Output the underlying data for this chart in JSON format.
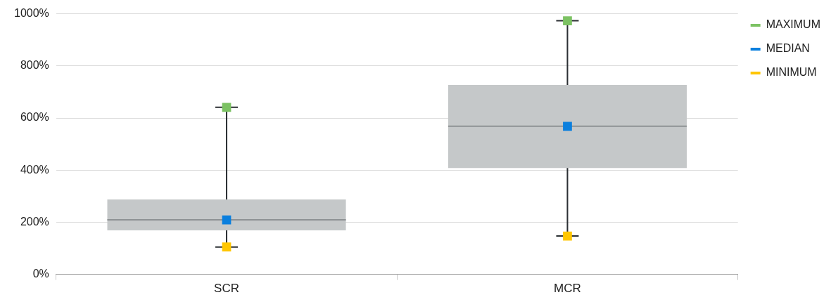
{
  "chart_data": {
    "type": "box",
    "categories": [
      "SCR",
      "MCR"
    ],
    "ylim": [
      0,
      1000
    ],
    "yticks": [
      {
        "value": 0,
        "label": "0%"
      },
      {
        "value": 200,
        "label": "200%"
      },
      {
        "value": 400,
        "label": "400%"
      },
      {
        "value": 600,
        "label": "600%"
      },
      {
        "value": 800,
        "label": "800%"
      },
      {
        "value": 1000,
        "label": "1000%"
      }
    ],
    "grid": "y",
    "legend": "top right",
    "series": [
      {
        "type": "box",
        "color": "#c5c8c9",
        "boxes": [
          {
            "low": 105,
            "q1": 169,
            "median": 209,
            "q3": 287,
            "high": 641
          },
          {
            "low": 147,
            "q1": 408,
            "median": 568,
            "q3": 727,
            "high": 973
          }
        ]
      },
      {
        "name": "MAXIMUM",
        "type": "scatter",
        "marker": "square",
        "color": "#7cc263",
        "x": [
          "SCR",
          "MCR"
        ],
        "values": [
          641,
          973
        ]
      },
      {
        "name": "MEDIAN",
        "type": "scatter",
        "marker": "square",
        "color": "#0a7fde",
        "x": [
          "SCR",
          "MCR"
        ],
        "values": [
          209,
          568
        ]
      },
      {
        "name": "MINIMUM",
        "type": "scatter",
        "marker": "square",
        "color": "#ffc600",
        "x": [
          "SCR",
          "MCR"
        ],
        "values": [
          105,
          147
        ]
      }
    ]
  }
}
